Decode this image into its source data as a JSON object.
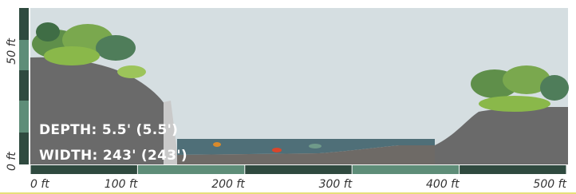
{
  "axis": {
    "y_labels": [
      "50 ft",
      "0 ft"
    ],
    "x_labels": [
      "0 ft",
      "100 ft",
      "200 ft",
      "300 ft",
      "400 ft",
      "500 ft"
    ]
  },
  "measurements": {
    "depth": "DEPTH: 5.5' (5.5')",
    "width": "WIDTH: 243' (243')"
  }
}
